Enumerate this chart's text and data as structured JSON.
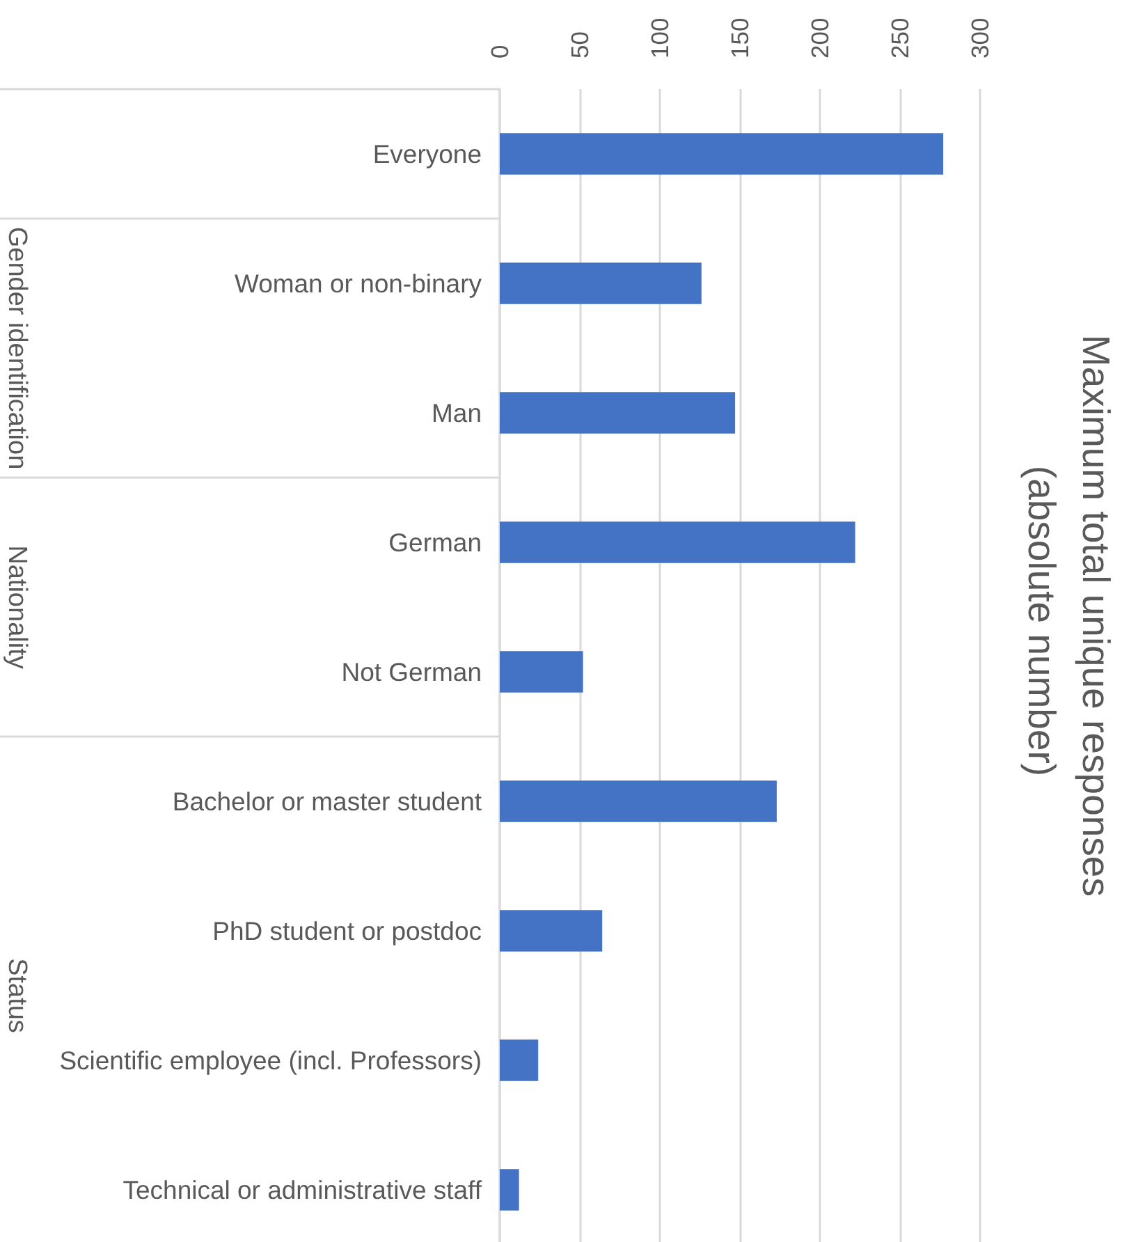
{
  "chart_data": {
    "type": "bar",
    "orientation": "horizontal",
    "title": "Maximum total unique responses (absolute number)",
    "categories": [
      "Everyone",
      "Woman or non-binary",
      "Man",
      "German",
      "Not German",
      "Bachelor or master student",
      "PhD student or postdoc",
      "Scientific employee (incl. Professors)",
      "Technical or administrative staff"
    ],
    "values": [
      277,
      126,
      147,
      222,
      52,
      173,
      64,
      24,
      12
    ],
    "color": "#4472c4",
    "xlim": [
      0,
      300
    ],
    "xticks": [
      0,
      50,
      100,
      150,
      200,
      250,
      300
    ],
    "grid": "x",
    "annotations": [
      "Gender identification",
      "Nationality",
      "Status"
    ]
  }
}
